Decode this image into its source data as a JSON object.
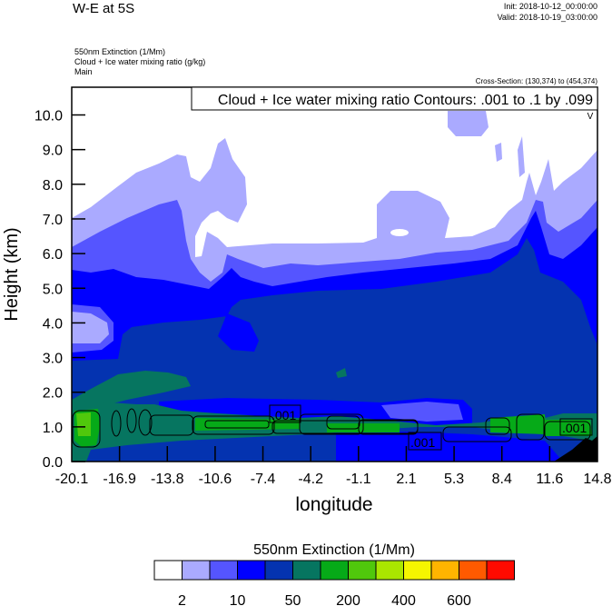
{
  "header": {
    "title": "W-E at 5S",
    "init": "Init: 2018-10-12_00:00:00",
    "valid": "Valid: 2018-10-19_03:00:00",
    "field1": "550nm Extinction   (1/Mm)",
    "field2": "Cloud + Ice water mixing ratio   (g/kg)",
    "field3": "Main",
    "cross_section": "Cross-Section: (130,374) to (454,374)"
  },
  "chart_data": {
    "type": "heatmap",
    "title": "W-E at 5S",
    "xlabel": "longitude",
    "ylabel": "Height (km)",
    "xlim": [
      -20.1,
      14.8
    ],
    "ylim": [
      0,
      10.8
    ],
    "x_ticks": [
      "-20.1",
      "-16.9",
      "-13.8",
      "-10.6",
      "-7.4",
      "-4.2",
      "-1.1",
      "2.1",
      "5.3",
      "8.4",
      "11.6",
      "14.8"
    ],
    "y_ticks": [
      "0.0",
      "1.0",
      "2.0",
      "3.0",
      "4.0",
      "5.0",
      "6.0",
      "7.0",
      "8.0",
      "9.0",
      "10.0"
    ],
    "contour_info": "Cloud + Ice water mixing ratio Contours: .001 to .1 by .099",
    "contour_labels": [
      ".001",
      ".001",
      ".001"
    ],
    "corner_mark": "V",
    "colorbar": {
      "title": "550nm Extinction  (1/Mm)",
      "colors": [
        "#ffffff",
        "#aaaaff",
        "#5555ff",
        "#0000ff",
        "#0433b0",
        "#067560",
        "#06aa18",
        "#50c80c",
        "#aae600",
        "#f5f500",
        "#ffb400",
        "#ff5a00",
        "#ff0a00"
      ],
      "labels": [
        "2",
        "10",
        "50",
        "200",
        "400",
        "600"
      ]
    }
  }
}
